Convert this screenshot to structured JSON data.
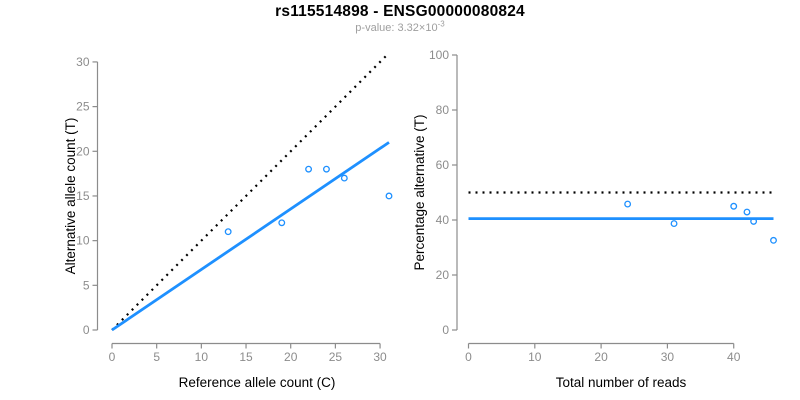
{
  "chart_data": {
    "figure_title": "rs115514898 - ENSG00000080824",
    "p_value_label": "p-value: 3.32×10",
    "p_value_exponent": "-3",
    "panels": [
      {
        "type": "scatter",
        "xlabel": "Reference allele count (C)",
        "ylabel": "Alternative allele count (T)",
        "xlim": [
          0,
          31
        ],
        "ylim": [
          0,
          31
        ],
        "xticks": [
          0,
          5,
          10,
          15,
          20,
          25,
          30
        ],
        "yticks": [
          0,
          5,
          10,
          15,
          20,
          25,
          30
        ],
        "points": [
          [
            13,
            11
          ],
          [
            19,
            12
          ],
          [
            22,
            18
          ],
          [
            24,
            18
          ],
          [
            26,
            17
          ],
          [
            31,
            15
          ]
        ],
        "lines": [
          {
            "name": "identity-line",
            "style": "dotted",
            "color": "#000000",
            "from": [
              0,
              0
            ],
            "to": [
              31,
              31
            ]
          },
          {
            "name": "fitted-ratio-line",
            "style": "solid",
            "color": "#1E90FF",
            "from": [
              0,
              0
            ],
            "to": [
              31,
              21
            ]
          }
        ]
      },
      {
        "type": "scatter",
        "xlabel": "Total number of reads",
        "ylabel": "Percentage alternative (T)",
        "xlim": [
          0,
          46
        ],
        "ylim": [
          0,
          100
        ],
        "xticks": [
          0,
          10,
          20,
          30,
          40
        ],
        "yticks": [
          0,
          20,
          40,
          60,
          80,
          100
        ],
        "points": [
          [
            24,
            45.8
          ],
          [
            31,
            38.7
          ],
          [
            40,
            45.0
          ],
          [
            42,
            42.9
          ],
          [
            43,
            39.5
          ],
          [
            46,
            32.6
          ]
        ],
        "lines": [
          {
            "name": "expected-50pct-line",
            "style": "dotted",
            "color": "#000000",
            "from": [
              0,
              50
            ],
            "to": [
              46,
              50
            ]
          },
          {
            "name": "mean-percentage-line",
            "style": "solid",
            "color": "#1E90FF",
            "from": [
              0,
              40.5
            ],
            "to": [
              46,
              40.5
            ]
          }
        ]
      }
    ]
  },
  "colors": {
    "accent_blue": "#1E90FF",
    "axis": "#8C8C8C",
    "tick_labels": "#8C8C8C",
    "axis_titles": "#000000",
    "title": "#000000",
    "subtitle": "#9E9E9E",
    "background": "#FFFFFF"
  }
}
